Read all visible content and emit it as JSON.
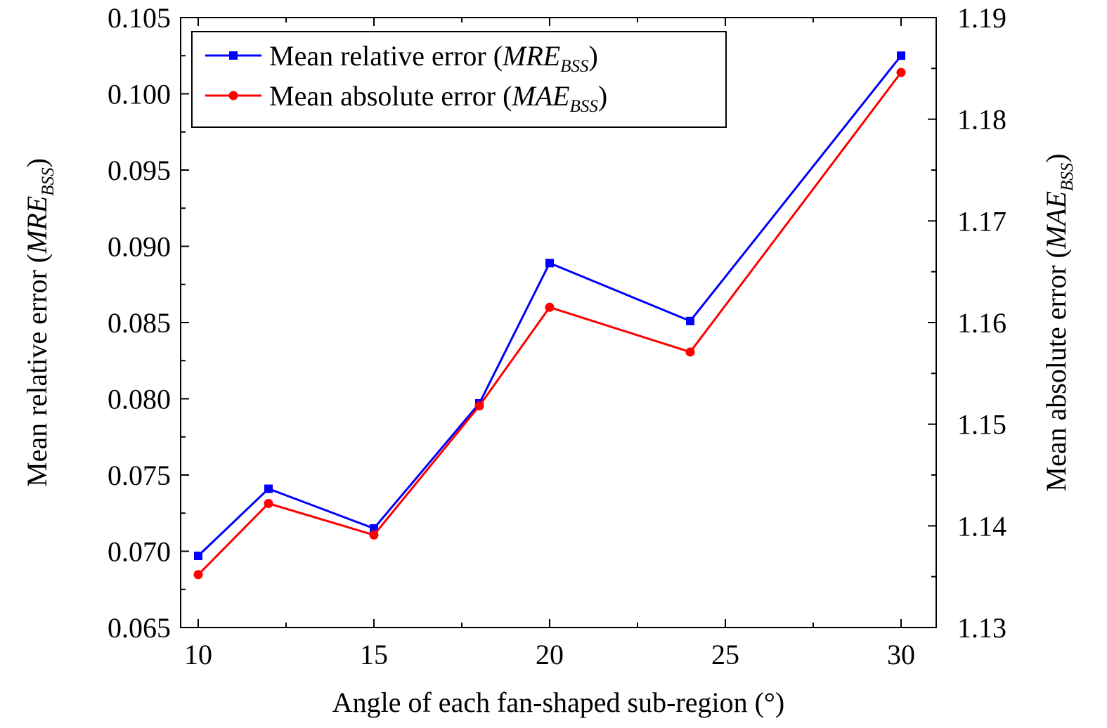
{
  "chart_data": {
    "type": "line",
    "x": [
      10,
      12,
      15,
      18,
      20,
      24,
      30
    ],
    "series": [
      {
        "key": "mre",
        "axis": "left",
        "color": "#0000ff",
        "marker": "square",
        "legend_prefix": "Mean relative error (",
        "legend_var": "MRE",
        "legend_sub": "BSS",
        "legend_suffix": ")",
        "values": [
          0.0697,
          0.0741,
          0.0715,
          0.0797,
          0.0889,
          0.0851,
          0.1025
        ]
      },
      {
        "key": "mae",
        "axis": "right",
        "color": "#ff0000",
        "marker": "circle",
        "legend_prefix": "Mean absolute error (",
        "legend_var": "MAE",
        "legend_sub": "BSS",
        "legend_suffix": ")",
        "values": [
          1.1352,
          1.1422,
          1.1391,
          1.1518,
          1.1615,
          1.1571,
          1.1846
        ]
      }
    ],
    "xlabel": "Angle of each fan-shaped sub-region (°)",
    "ylabel_left": {
      "prefix": "Mean relative error (",
      "var": "MRE",
      "sub": "BSS",
      "suffix": ")"
    },
    "ylabel_right": {
      "prefix": "Mean absolute error (",
      "var": "MAE",
      "sub": "BSS",
      "suffix": ")"
    },
    "xlim": [
      9.5,
      31
    ],
    "ylim_left": [
      0.065,
      0.105
    ],
    "ylim_right": [
      1.13,
      1.19
    ],
    "xticks": [
      10,
      15,
      20,
      25,
      30
    ],
    "xticks_minor": [
      12.5,
      17.5,
      22.5,
      27.5
    ],
    "yticks_left": [
      "0.065",
      "0.070",
      "0.075",
      "0.080",
      "0.085",
      "0.090",
      "0.095",
      "0.100",
      "0.105"
    ],
    "yticks_right": [
      "1.13",
      "1.14",
      "1.15",
      "1.16",
      "1.17",
      "1.18",
      "1.19"
    ],
    "grid": false,
    "legend_position": "top-left"
  }
}
